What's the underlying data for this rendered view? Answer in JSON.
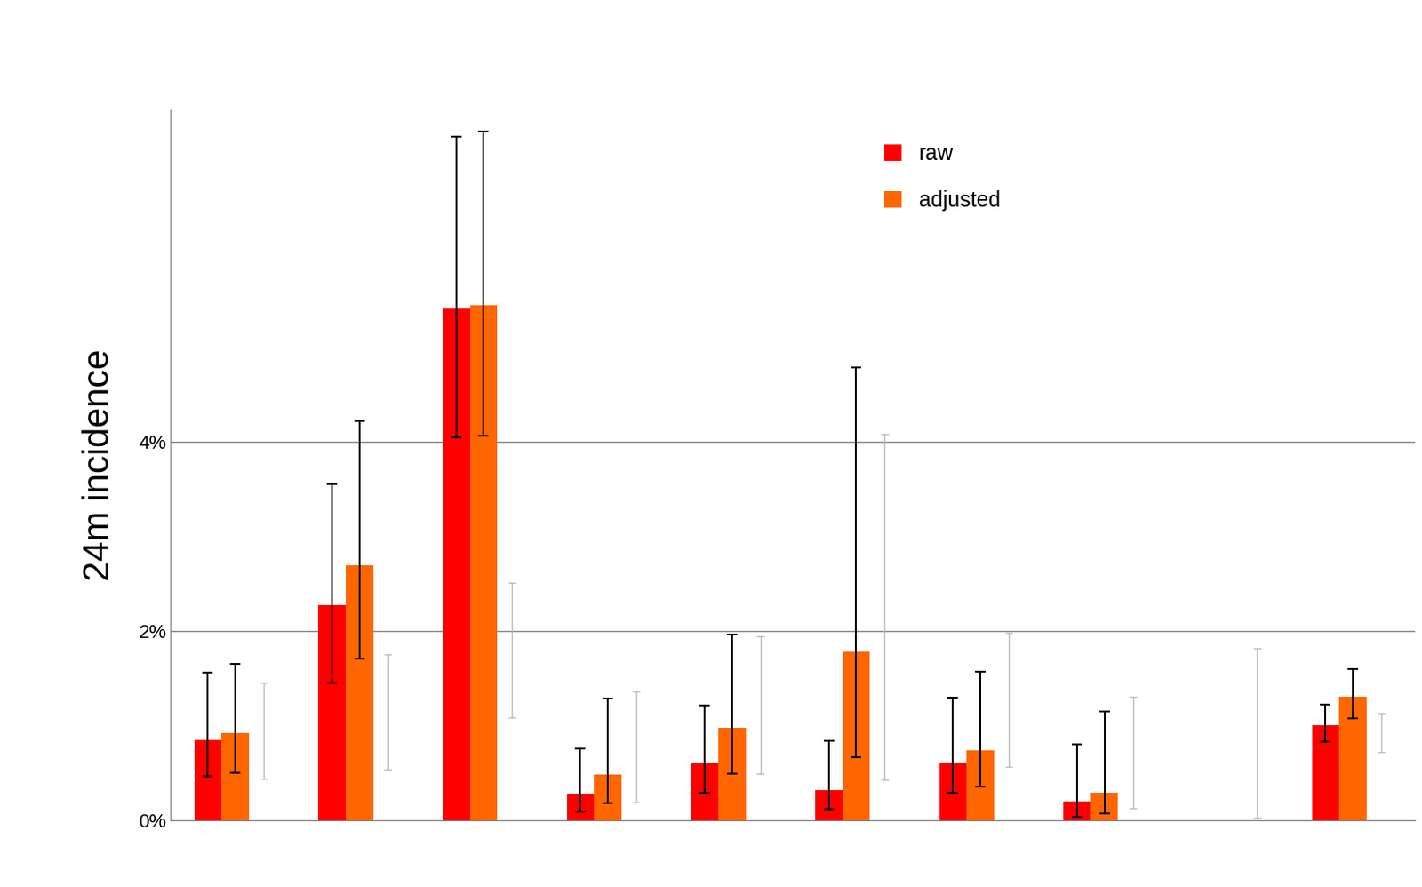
{
  "chart_data": {
    "type": "bar",
    "y_label": "24m incidence",
    "categories": [
      null,
      null,
      null,
      null,
      null,
      null,
      null,
      null,
      null,
      null
    ],
    "series": [
      {
        "name": "raw",
        "color": "#ff0000",
        "values": [
          0.85,
          2.27,
          5.4,
          0.28,
          0.6,
          0.32,
          0.61,
          0.2,
          null,
          1.0
        ],
        "error_low": [
          0.47,
          1.45,
          4.04,
          0.09,
          0.29,
          0.12,
          0.29,
          0.04,
          null,
          0.83
        ],
        "error_high": [
          1.56,
          3.55,
          7.22,
          0.76,
          1.21,
          0.84,
          1.3,
          0.8,
          null,
          1.22
        ]
      },
      {
        "name": "adjusted",
        "color": "#ff6600",
        "values": [
          0.92,
          2.69,
          5.44,
          0.48,
          0.98,
          1.78,
          0.74,
          0.29,
          null,
          1.31
        ],
        "error_low": [
          0.5,
          1.71,
          4.06,
          0.18,
          0.49,
          0.67,
          0.36,
          0.07,
          null,
          1.08
        ],
        "error_high": [
          1.65,
          4.22,
          7.27,
          1.29,
          1.96,
          4.78,
          1.57,
          1.15,
          null,
          1.6
        ]
      }
    ],
    "reference_intervals": [
      [
        0.44,
        1.45
      ],
      [
        0.54,
        1.75
      ],
      [
        1.09,
        2.51
      ],
      [
        0.19,
        1.36
      ],
      [
        0.49,
        1.94
      ],
      [
        0.43,
        4.08
      ],
      [
        0.57,
        1.98
      ],
      [
        0.13,
        1.31
      ],
      [
        0.03,
        1.82
      ],
      [
        0.72,
        1.13
      ]
    ],
    "ylim": [
      0,
      7.5
    ],
    "yticks": [
      {
        "value": 0,
        "label": "0%"
      },
      {
        "value": 2,
        "label": "2%"
      },
      {
        "value": 4,
        "label": "4%"
      }
    ],
    "grid": true,
    "legend": "upper center",
    "tick_labels": "y"
  }
}
